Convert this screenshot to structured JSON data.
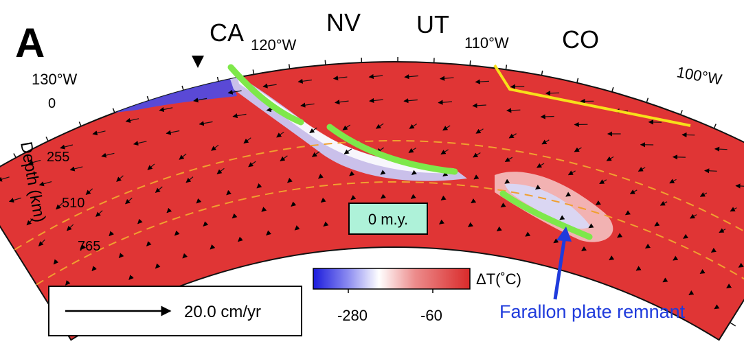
{
  "panel_label": "A",
  "states": [
    "CA",
    "NV",
    "UT",
    "CO"
  ],
  "longitudes": [
    "130°W",
    "120°W",
    "110°W",
    "100°W"
  ],
  "depth_axis": {
    "label": "Depth (km)",
    "ticks": [
      "0",
      "255",
      "510",
      "765"
    ]
  },
  "time_label": "0 m.y.",
  "velocity_scale": {
    "label": "20.0 cm/yr"
  },
  "colorbar": {
    "label": "ΔT(˚C)",
    "ticks": [
      "-280",
      "-60"
    ]
  },
  "annotation": "Farallon plate remnant",
  "colors": {
    "background": "#e03535",
    "cold": "#2a2ae0",
    "slab": "#7ee84a",
    "boundary": "#f7e01a",
    "phase_line": "#f0a030",
    "annotation": "#1f3bdc",
    "time_box": "#aef2d9"
  }
}
